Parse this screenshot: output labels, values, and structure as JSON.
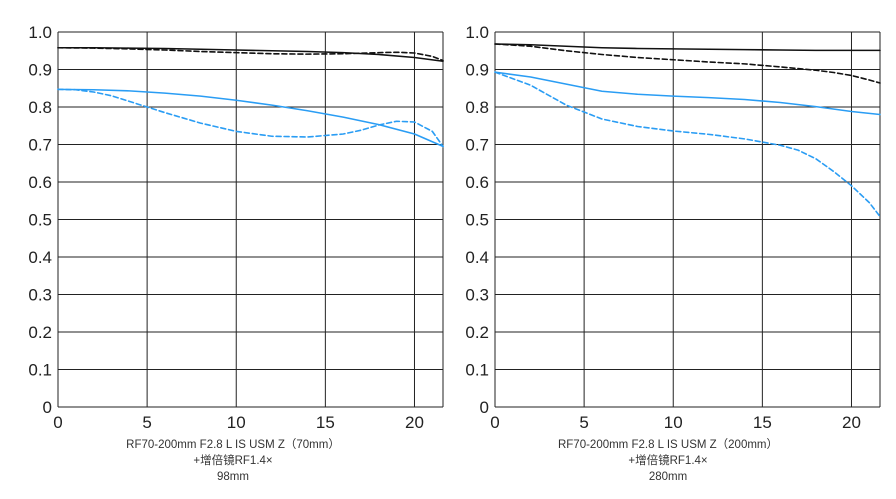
{
  "chart_data": [
    {
      "type": "line",
      "caption": [
        "RF70-200mm F2.8 L IS USM Z（70mm）",
        "+增倍镜RF1.4×",
        "98mm"
      ],
      "xlim": [
        0,
        21.6
      ],
      "ylim": [
        0,
        1.0
      ],
      "x_ticks": [
        0,
        5,
        10,
        15,
        20
      ],
      "y_ticks": [
        0,
        0.1,
        0.2,
        0.3,
        0.4,
        0.5,
        0.6,
        0.7,
        0.8,
        0.9,
        1.0
      ],
      "y_tick_labels": [
        "0",
        "0.1",
        "0.2",
        "0.3",
        "0.4",
        "0.5",
        "0.6",
        "0.7",
        "0.8",
        "0.9",
        "1.0"
      ],
      "grid": true,
      "series": [
        {
          "color": "#111111",
          "dash": "solid",
          "x": [
            0,
            2,
            4,
            6,
            8,
            10,
            12,
            14,
            16,
            18,
            20,
            21.6
          ],
          "y": [
            0.958,
            0.958,
            0.957,
            0.956,
            0.954,
            0.952,
            0.95,
            0.948,
            0.945,
            0.94,
            0.932,
            0.922
          ]
        },
        {
          "color": "#111111",
          "dash": "dashed",
          "x": [
            0,
            2,
            4,
            6,
            8,
            10,
            12,
            14,
            16,
            18,
            19,
            20,
            21,
            21.6
          ],
          "y": [
            0.958,
            0.957,
            0.955,
            0.952,
            0.948,
            0.945,
            0.942,
            0.941,
            0.942,
            0.945,
            0.946,
            0.944,
            0.935,
            0.924
          ]
        },
        {
          "color": "#2a9df4",
          "dash": "solid",
          "x": [
            0,
            2,
            4,
            6,
            8,
            10,
            12,
            14,
            16,
            18,
            20,
            21.6
          ],
          "y": [
            0.847,
            0.846,
            0.843,
            0.837,
            0.829,
            0.818,
            0.805,
            0.79,
            0.773,
            0.753,
            0.728,
            0.695
          ]
        },
        {
          "color": "#2a9df4",
          "dash": "dashed",
          "x": [
            0,
            1,
            2,
            3,
            4,
            6,
            8,
            10,
            12,
            14,
            16,
            17,
            18,
            19,
            20,
            21,
            21.6
          ],
          "y": [
            0.847,
            0.846,
            0.84,
            0.83,
            0.815,
            0.785,
            0.757,
            0.735,
            0.722,
            0.72,
            0.728,
            0.738,
            0.752,
            0.762,
            0.76,
            0.735,
            0.695
          ]
        }
      ]
    },
    {
      "type": "line",
      "caption": [
        "RF70-200mm F2.8 L IS USM Z（200mm）",
        "+增倍镜RF1.4×",
        "280mm"
      ],
      "xlim": [
        0,
        21.6
      ],
      "ylim": [
        0,
        1.0
      ],
      "x_ticks": [
        0,
        5,
        10,
        15,
        20
      ],
      "y_ticks": [
        0,
        0.1,
        0.2,
        0.3,
        0.4,
        0.5,
        0.6,
        0.7,
        0.8,
        0.9,
        1.0
      ],
      "y_tick_labels": [
        "0",
        "0.1",
        "0.2",
        "0.3",
        "0.4",
        "0.5",
        "0.6",
        "0.7",
        "0.8",
        "0.9",
        "1.0"
      ],
      "grid": true,
      "series": [
        {
          "color": "#111111",
          "dash": "solid",
          "x": [
            0,
            2,
            4,
            6,
            8,
            10,
            12,
            14,
            16,
            18,
            20,
            21.6
          ],
          "y": [
            0.968,
            0.966,
            0.962,
            0.958,
            0.956,
            0.955,
            0.954,
            0.953,
            0.952,
            0.951,
            0.951,
            0.951
          ]
        },
        {
          "color": "#111111",
          "dash": "dashed",
          "x": [
            0,
            2,
            4,
            6,
            8,
            10,
            12,
            14,
            16,
            18,
            19,
            20,
            21,
            21.6
          ],
          "y": [
            0.968,
            0.962,
            0.95,
            0.94,
            0.932,
            0.926,
            0.92,
            0.915,
            0.907,
            0.898,
            0.892,
            0.884,
            0.872,
            0.864
          ]
        },
        {
          "color": "#2a9df4",
          "dash": "solid",
          "x": [
            0,
            2,
            4,
            6,
            8,
            10,
            12,
            14,
            16,
            18,
            20,
            21.6
          ],
          "y": [
            0.893,
            0.88,
            0.861,
            0.842,
            0.834,
            0.829,
            0.825,
            0.82,
            0.812,
            0.801,
            0.788,
            0.78
          ]
        },
        {
          "color": "#2a9df4",
          "dash": "dashed",
          "x": [
            0,
            2,
            4,
            6,
            8,
            10,
            12,
            14,
            16,
            17,
            18,
            19,
            20,
            21,
            21.6
          ],
          "y": [
            0.893,
            0.858,
            0.805,
            0.768,
            0.748,
            0.736,
            0.727,
            0.715,
            0.698,
            0.685,
            0.662,
            0.628,
            0.59,
            0.545,
            0.508
          ]
        }
      ]
    }
  ]
}
